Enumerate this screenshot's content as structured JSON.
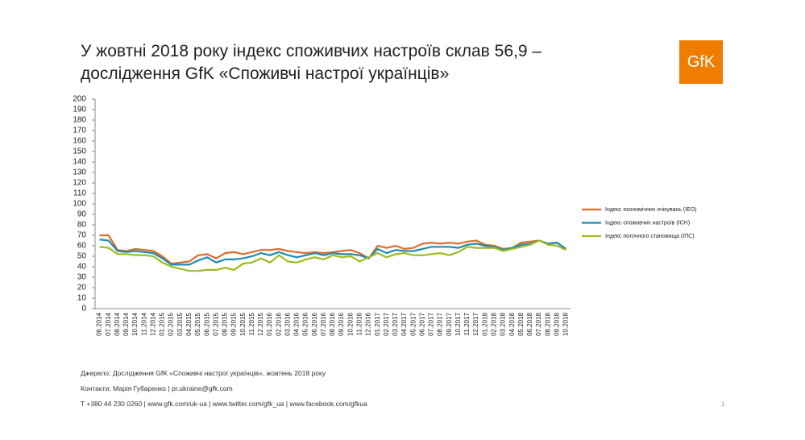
{
  "chart_data": {
    "type": "line",
    "title": [
      "У жовтні 2018 року індекс споживчих настроїв склав 56,9 –",
      "дослідження GfK «Споживчі настрої українців»"
    ],
    "logo": "GfK",
    "categories": [
      "06.2014",
      "07.2014",
      "08.2014",
      "09.2014",
      "10.2014",
      "11.2014",
      "12.2014",
      "01.2015",
      "02.2015",
      "03.2015",
      "04.2015",
      "05.2015",
      "06.2015",
      "07.2015",
      "08.2015",
      "09.2015",
      "10.2015",
      "11.2015",
      "12.2015",
      "01.2016",
      "02.2016",
      "03.2016",
      "04.2016",
      "05.2016",
      "06.2016",
      "07.2016",
      "08.2016",
      "09.2016",
      "10.2016",
      "11.2016",
      "12.2016",
      "01.2017",
      "02.2017",
      "03.2017",
      "04.2017",
      "05.2017",
      "06.2017",
      "07.2017",
      "08.2017",
      "09.2017",
      "10.2017",
      "11.2017",
      "12.2017",
      "01.2018",
      "02.2018",
      "03.2018",
      "04.2018",
      "05.2018",
      "06.2018",
      "07.2018",
      "08.2018",
      "09.2018",
      "10.2018"
    ],
    "series": [
      {
        "name": "Індекс економічних очікувань (ІЕО)",
        "color": "#e06c2c",
        "values": [
          70,
          70,
          56,
          55,
          57,
          56,
          55,
          50,
          43,
          44,
          45,
          51,
          52,
          48,
          53,
          54,
          52,
          54,
          56,
          56,
          57,
          55,
          54,
          53,
          54,
          53,
          54,
          55,
          56,
          53,
          48,
          60,
          58,
          60,
          57,
          58,
          62,
          63,
          62,
          63,
          62,
          64,
          65,
          61,
          60,
          57,
          58,
          63,
          64,
          65,
          62,
          63,
          57
        ]
      },
      {
        "name": "Індекс споживчих настроїв (ІСН)",
        "color": "#1f8bb0",
        "values": [
          66,
          65,
          55,
          54,
          55,
          54,
          53,
          48,
          42,
          42,
          42,
          46,
          49,
          44,
          47,
          47,
          48,
          50,
          53,
          51,
          54,
          51,
          49,
          51,
          53,
          51,
          53,
          52,
          52,
          51,
          48,
          57,
          53,
          56,
          55,
          55,
          57,
          59,
          59,
          59,
          58,
          61,
          62,
          60,
          59,
          56,
          58,
          61,
          62,
          65,
          62,
          63,
          57
        ]
      },
      {
        "name": "Індекс поточного становища (ІПС)",
        "color": "#9cbc1e",
        "values": [
          59,
          58,
          52,
          52,
          51,
          51,
          50,
          44,
          40,
          38,
          36,
          36,
          37,
          37,
          39,
          37,
          43,
          44,
          48,
          44,
          51,
          45,
          44,
          47,
          49,
          47,
          51,
          49,
          50,
          45,
          49,
          53,
          49,
          52,
          53,
          51,
          51,
          52,
          53,
          51,
          54,
          59,
          58,
          58,
          58,
          55,
          57,
          59,
          61,
          65,
          61,
          60,
          56
        ]
      }
    ],
    "ylim": [
      0,
      200
    ],
    "yticks": [
      0,
      10,
      20,
      30,
      40,
      50,
      60,
      70,
      80,
      90,
      100,
      110,
      120,
      130,
      140,
      150,
      160,
      170,
      180,
      190,
      200
    ],
    "footer": [
      "Джерело: Дослідження GfK «Споживчі настрої українців», жовтень 2018 року",
      "Контакти: Марія Губаренко | pr.ukraine@gfk.com",
      "T +380 44 230 0260 | www.gfk.com/uk-ua | www.twitter.com/gfk_ua | www.facebook.com/gfkua"
    ],
    "page_number": "1"
  }
}
